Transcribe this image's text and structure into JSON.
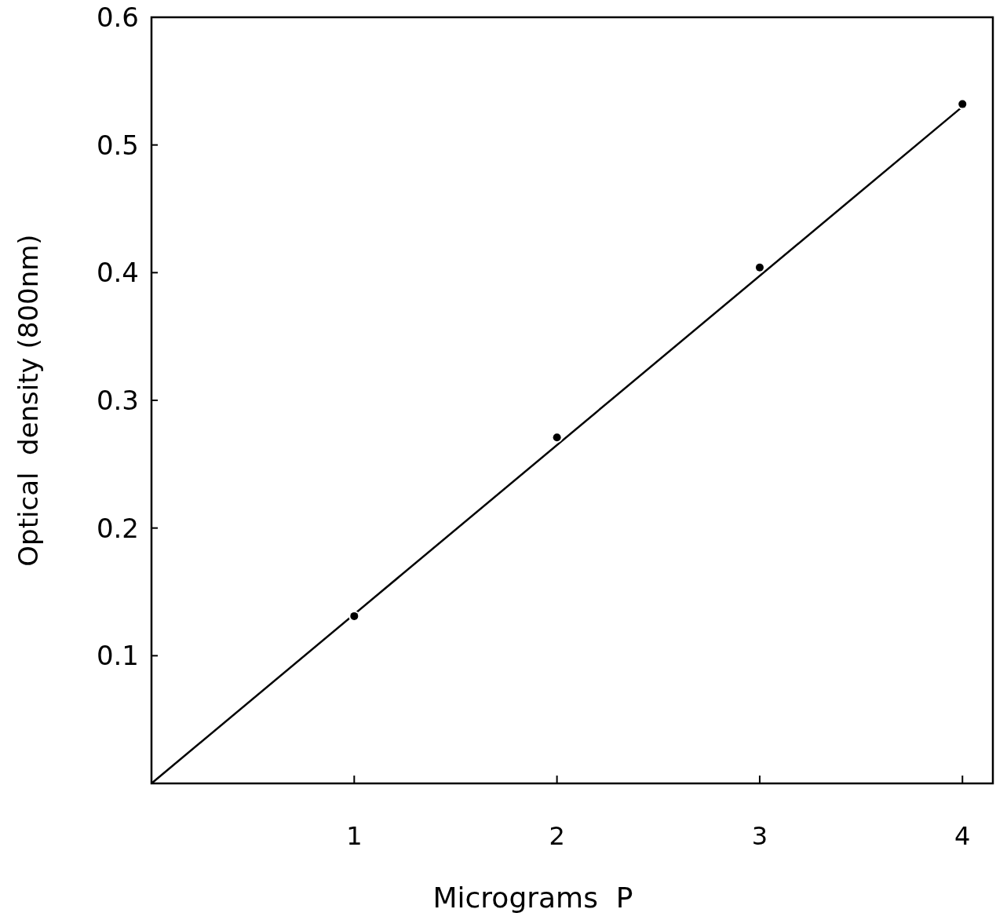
{
  "chart_data": {
    "type": "scatter",
    "xlabel": "Micrograms  P",
    "ylabel": "Optical  density (800nm)",
    "xlim": [
      0,
      4.15
    ],
    "ylim": [
      0,
      0.6
    ],
    "xticks": [
      1,
      2,
      3,
      4
    ],
    "yticks": [
      0.1,
      0.2,
      0.3,
      0.4,
      0.5,
      0.6
    ],
    "grid": false,
    "marker": "circle",
    "series": [
      {
        "color": "#000000",
        "x": [
          1,
          2,
          3,
          4
        ],
        "values": [
          0.131,
          0.271,
          0.404,
          0.532
        ]
      },
      {
        "type": "line",
        "color": "#000000",
        "x": [
          0,
          4
        ],
        "values": [
          0,
          0.53
        ],
        "line_style": "solid",
        "marker": "none"
      }
    ]
  }
}
